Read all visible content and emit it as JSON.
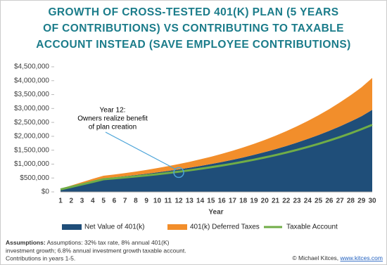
{
  "chart_data": {
    "type": "area",
    "stacked": true,
    "title_lines": [
      "GROWTH OF CROSS-TESTED 401(K) PLAN (5 YEARS",
      "OF CONTRIBUTIONS) VS CONTRIBUTING TO TAXABLE",
      "ACCOUNT INSTEAD (SAVE EMPLOYEE CONTRIBUTIONS)"
    ],
    "x_label": "Year",
    "x": [
      1,
      2,
      3,
      4,
      5,
      6,
      7,
      8,
      9,
      10,
      11,
      12,
      13,
      14,
      15,
      16,
      17,
      18,
      19,
      20,
      21,
      22,
      23,
      24,
      25,
      26,
      27,
      28,
      29,
      30
    ],
    "xlim": [
      1,
      30
    ],
    "ylim": [
      0,
      4500000
    ],
    "yticks": [
      {
        "value": 0,
        "label": "$0"
      },
      {
        "value": 500000,
        "label": "$500,000"
      },
      {
        "value": 1000000,
        "label": "$1,000,000"
      },
      {
        "value": 1500000,
        "label": "$1,500,000"
      },
      {
        "value": 2000000,
        "label": "$2,000,000"
      },
      {
        "value": 2500000,
        "label": "$2,500,000"
      },
      {
        "value": 3000000,
        "label": "$3,000,000"
      },
      {
        "value": 3500000,
        "label": "$3,500,000"
      },
      {
        "value": 4000000,
        "label": "$4,000,000"
      },
      {
        "value": 4500000,
        "label": "$4,500,000"
      }
    ],
    "series": [
      {
        "name": "Net Value of 401(k)",
        "type": "area",
        "color": "#1f4e79",
        "values": [
          100000,
          200000,
          300000,
          400000,
          490000,
          526000,
          565000,
          607000,
          652000,
          700000,
          752000,
          808000,
          868000,
          932000,
          1001000,
          1075000,
          1155000,
          1240000,
          1332000,
          1431000,
          1537000,
          1650000,
          1773000,
          1904000,
          2045000,
          2196000,
          2358000,
          2533000,
          2720000,
          2950000
        ]
      },
      {
        "name": "401(k) Deferred Taxes",
        "type": "area",
        "color": "#f28e2b",
        "values": [
          15000,
          30000,
          50000,
          70000,
          90000,
          99000,
          111000,
          124000,
          139000,
          155000,
          173000,
          193000,
          214000,
          239000,
          264000,
          292000,
          325000,
          358000,
          397000,
          438000,
          483000,
          533000,
          587000,
          647000,
          712000,
          782000,
          861000,
          945000,
          1039000,
          1150000
        ]
      },
      {
        "name": "Taxable Account",
        "type": "line",
        "color": "#70ad47",
        "values": [
          90000,
          180000,
          270000,
          360000,
          455000,
          486000,
          520000,
          556000,
          594000,
          635000,
          679000,
          726000,
          776000,
          830000,
          887000,
          948000,
          1013000,
          1083000,
          1158000,
          1238000,
          1323000,
          1414000,
          1512000,
          1616000,
          1728000,
          1847000,
          1974000,
          2110000,
          2256000,
          2412000
        ]
      }
    ],
    "annotation": {
      "lines": [
        "Year 12:",
        "Owners realize benefit",
        "of plan creation"
      ],
      "x": 12
    },
    "assumptions_label": "Assumptions:",
    "assumptions_lines": [
      "Assumptions: 32% tax rate, 8% annual 401(K)",
      "investment growth; 6.8% annual investment growth taxable account.",
      "Contributions in years 1-5."
    ],
    "credit": "© Michael Kitces, ",
    "credit_link": "www.kitces.com"
  }
}
